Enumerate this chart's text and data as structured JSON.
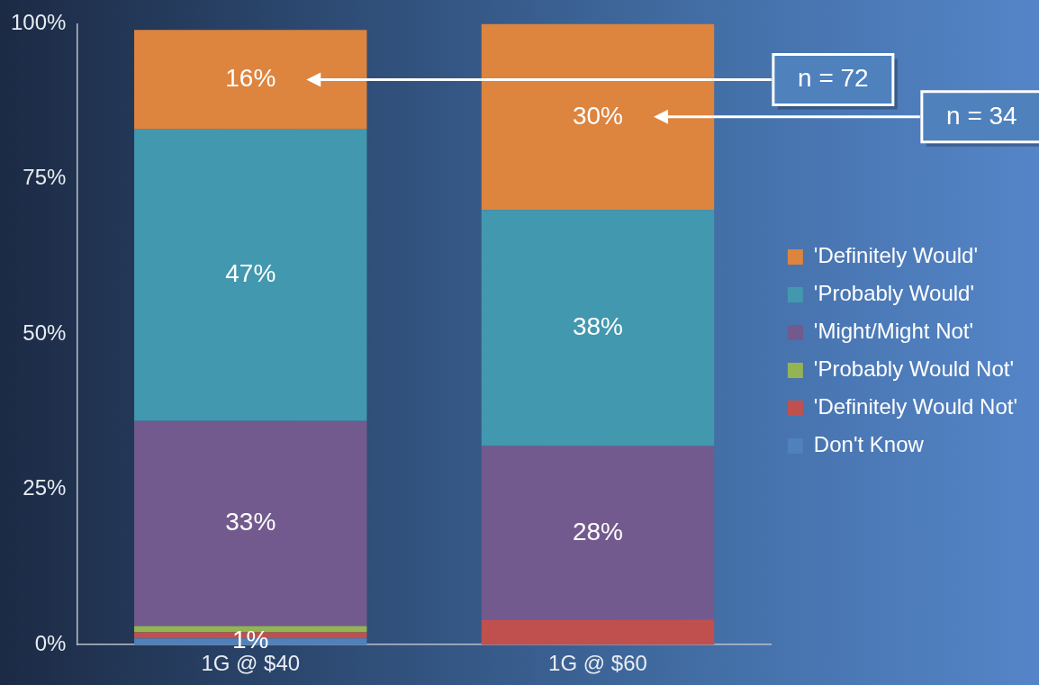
{
  "chart_data": {
    "type": "bar",
    "stacked": true,
    "categories": [
      "1G @ $40",
      "1G @ $60"
    ],
    "series": [
      {
        "name": "Don't Know",
        "color": "#4f81bd",
        "values": [
          1,
          0
        ],
        "value_labels": [
          "1%",
          null
        ]
      },
      {
        "name": "'Definitely Would Not'",
        "color": "#c0504d",
        "values": [
          1,
          4
        ],
        "value_labels": [
          null,
          null
        ]
      },
      {
        "name": "'Probably Would Not'",
        "color": "#94b454",
        "values": [
          1,
          0
        ],
        "value_labels": [
          null,
          null
        ]
      },
      {
        "name": "'Might/Might Not'",
        "color": "#725a8e",
        "values": [
          33,
          28
        ],
        "value_labels": [
          "33%",
          "28%"
        ]
      },
      {
        "name": "'Probably Would'",
        "color": "#4298ae",
        "values": [
          47,
          38
        ],
        "value_labels": [
          "47%",
          "38%"
        ]
      },
      {
        "name": "'Definitely Would'",
        "color": "#dd843f",
        "values": [
          16,
          30
        ],
        "value_labels": [
          "16%",
          "30%"
        ]
      }
    ],
    "ylim": [
      0,
      100
    ],
    "yticks": [
      {
        "value": 0,
        "label": "0%"
      },
      {
        "value": 25,
        "label": "25%"
      },
      {
        "value": 50,
        "label": "50%"
      },
      {
        "value": 75,
        "label": "75%"
      },
      {
        "value": 100,
        "label": "100%"
      }
    ],
    "grid": false,
    "legend": "right",
    "annotations": [
      "n = 72",
      "n = 34"
    ]
  }
}
